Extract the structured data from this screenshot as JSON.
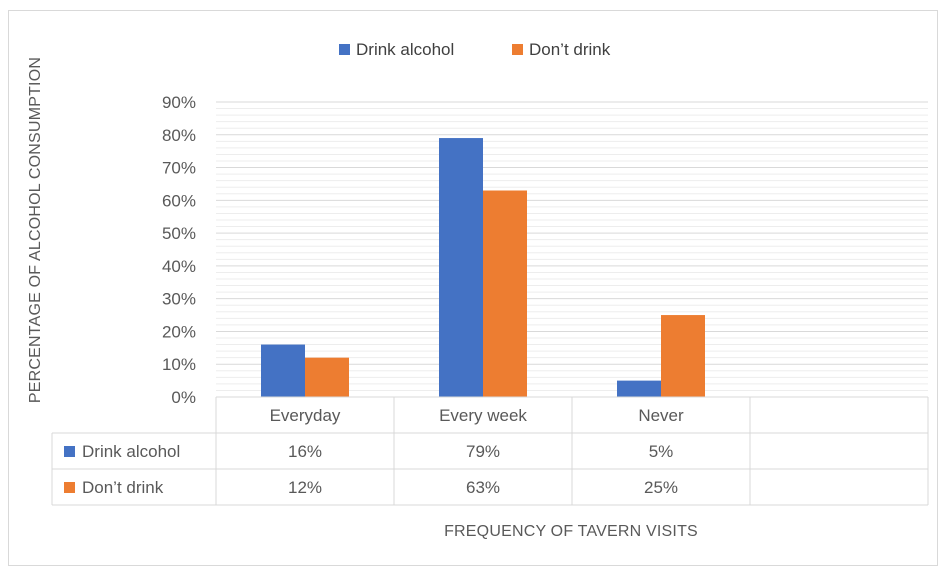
{
  "chart_data": {
    "type": "bar",
    "categories": [
      "Everyday",
      "Every week",
      "Never"
    ],
    "series": [
      {
        "name": "Drink alcohol",
        "values": [
          16,
          79,
          5
        ],
        "labels": [
          "16%",
          "79%",
          "5%"
        ],
        "color": "#4472c4"
      },
      {
        "name": "Don’t drink",
        "values": [
          12,
          63,
          25
        ],
        "labels": [
          "12%",
          "63%",
          "25%"
        ],
        "color": "#ed7d31"
      }
    ],
    "ylabel": "PERCENTAGE OF ALCOHOL CONSUMPTION",
    "xlabel": "FREQUENCY OF TAVERN VISITS",
    "ylim": [
      0,
      90
    ],
    "yticks": [
      "0%",
      "10%",
      "20%",
      "30%",
      "40%",
      "50%",
      "60%",
      "70%",
      "80%",
      "90%"
    ],
    "grid": true,
    "legend_position": "top",
    "data_table": true
  }
}
